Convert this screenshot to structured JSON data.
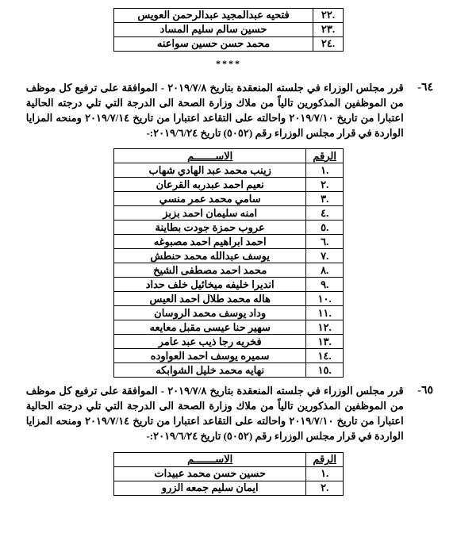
{
  "table1": {
    "rows": [
      {
        "num": ".٢٢",
        "name": "فتحيه عبدالمجيد عبدالرحمن العويس"
      },
      {
        "num": ".٢٣",
        "name": "حسين سالم سليم المساد"
      },
      {
        "num": ".٢٤",
        "name": "محمد حسن حسين سواعنه"
      }
    ]
  },
  "separator": "****",
  "decree64": {
    "number": "٦٤-",
    "text": "قرر مجلس الوزراء في جلسته المنعقدة بتاريخ ٢٠١٩/٧/٨ - الموافقة على ترفيع كل موظف من الموظفين المذكورين تالياً من ملاك وزارة الصحة الى الدرجة التي تلي درجته الحالية اعتبارا من تاريخ ٢٠١٩/٧/١٠ واحالته على التقاعد اعتبارا من تاريخ ٢٠١٩/٧/١٤ ومنحه المزايا الواردة في قرار مجلس الوزراء رقم (٥٠٥٢) تاريخ ٢٠١٩/٦/٢٤:-"
  },
  "table2": {
    "header": {
      "num": "الرقم",
      "name": "الاســـــــم"
    },
    "rows": [
      {
        "num": ".١",
        "name": "زينب محمد عبد الهادي شهاب"
      },
      {
        "num": ".٢",
        "name": "نعيم احمد عبدربه القرعان"
      },
      {
        "num": ".٣",
        "name": "سامي محمد عمر منسي"
      },
      {
        "num": ".٤",
        "name": "امنه سليمان احمد بزبز"
      },
      {
        "num": ".٥",
        "name": "عروب حمزة جودت بطاينة"
      },
      {
        "num": ".٦",
        "name": "احمد ابراهيم احمد مصبوغه"
      },
      {
        "num": ".٧",
        "name": "يوسف عبدالله محمد حنطش"
      },
      {
        "num": ".٨",
        "name": "محمد احمد مصطفى الشيخ"
      },
      {
        "num": ".٩",
        "name": "انديرا خليفه ميخائيل خلف حداد"
      },
      {
        "num": ".١٠",
        "name": "هاله محمد طلال احمد العيس"
      },
      {
        "num": ".١١",
        "name": "وداد يوسف محمد الروسان"
      },
      {
        "num": ".١٢",
        "name": "سهير حنا عيسى مقبل معايعه"
      },
      {
        "num": ".١٣",
        "name": "فخريه رجا ذيب عبد عامر"
      },
      {
        "num": ".١٤",
        "name": "سميره يوسف احمد العواوده"
      },
      {
        "num": ".١٥",
        "name": "نهايه محمد خليل الشوابكه"
      }
    ]
  },
  "decree65": {
    "number": "٦٥-",
    "text": "قرر مجلس الوزراء في جلسته المنعقدة بتاريخ ٢٠١٩/٧/٨ - الموافقة على ترفيع كل موظف من الموظفين المذكورين تالياً من ملاك وزارة الصحة الى الدرجة التي تلي درجته الحالية اعتبارا من تاريخ ٢٠١٩/٧/١٠ واحالته على التقاعد اعتبارا من تاريخ ٢٠١٩/٧/١٤ ومنحه المزايا الواردة في قرار مجلس الوزراء رقم (٥٠٥٢) تاريخ ٢٠١٩/٦/٢٤:-"
  },
  "table3": {
    "header": {
      "num": "الرقم",
      "name": "الاســـــــم"
    },
    "rows": [
      {
        "num": ".١",
        "name": "حسين حسن محمد عبيدات"
      },
      {
        "num": ".٢",
        "name": "ايمان سليم جمعه الزرو"
      }
    ]
  }
}
